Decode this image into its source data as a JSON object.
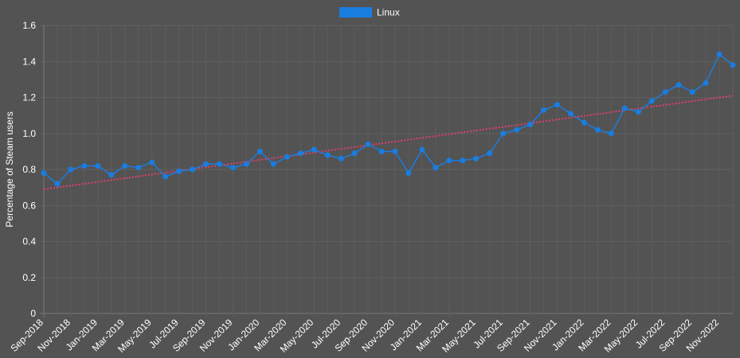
{
  "chart_data": {
    "type": "line",
    "ylabel": "Percentage of Steam users",
    "ylim": [
      0,
      1.6
    ],
    "yticks": [
      0,
      0.2,
      0.4,
      0.6,
      0.8,
      1.0,
      1.2,
      1.4,
      1.6
    ],
    "ytick_labels": [
      "0",
      "0.2",
      "0.4",
      "0.6",
      "0.8",
      "1.0",
      "1.2",
      "1.4",
      "1.6"
    ],
    "grid": true,
    "legend_position": "top-center",
    "x": [
      "Sep-2018",
      "Oct-2018",
      "Nov-2018",
      "Dec-2018",
      "Jan-2019",
      "Feb-2019",
      "Mar-2019",
      "Apr-2019",
      "May-2019",
      "Jun-2019",
      "Jul-2019",
      "Aug-2019",
      "Sep-2019",
      "Oct-2019",
      "Nov-2019",
      "Dec-2019",
      "Jan-2020",
      "Feb-2020",
      "Mar-2020",
      "Apr-2020",
      "May-2020",
      "Jun-2020",
      "Jul-2020",
      "Aug-2020",
      "Sep-2020",
      "Oct-2020",
      "Nov-2020",
      "Dec-2020",
      "Jan-2021",
      "Feb-2021",
      "Mar-2021",
      "Apr-2021",
      "May-2021",
      "Jun-2021",
      "Jul-2021",
      "Aug-2021",
      "Sep-2021",
      "Oct-2021",
      "Nov-2021",
      "Dec-2021",
      "Jan-2022",
      "Feb-2022",
      "Mar-2022",
      "Apr-2022",
      "May-2022",
      "Jun-2022",
      "Jul-2022",
      "Aug-2022",
      "Sep-2022",
      "Oct-2022",
      "Nov-2022",
      "Dec-2022"
    ],
    "xtick_labels": [
      "Sep-2018",
      "Nov-2018",
      "Jan-2019",
      "Mar-2019",
      "May-2019",
      "Jul-2019",
      "Sep-2019",
      "Nov-2019",
      "Jan-2020",
      "Mar-2020",
      "May-2020",
      "Jul-2020",
      "Sep-2020",
      "Nov-2020",
      "Jan-2021",
      "Mar-2021",
      "May-2021",
      "Jul-2021",
      "Sep-2021",
      "Nov-2021",
      "Jan-2022",
      "Mar-2022",
      "May-2022",
      "Jul-2022",
      "Sep-2022",
      "Nov-2022"
    ],
    "series": [
      {
        "name": "Linux",
        "color": "#1a7de0",
        "values": [
          0.78,
          0.72,
          0.8,
          0.82,
          0.82,
          0.77,
          0.82,
          0.81,
          0.84,
          0.76,
          0.79,
          0.8,
          0.83,
          0.83,
          0.81,
          0.83,
          0.9,
          0.83,
          0.87,
          0.89,
          0.91,
          0.88,
          0.86,
          0.89,
          0.94,
          0.9,
          0.9,
          0.78,
          0.91,
          0.81,
          0.85,
          0.85,
          0.86,
          0.89,
          1.0,
          1.02,
          1.05,
          1.13,
          1.16,
          1.11,
          1.06,
          1.02,
          1.0,
          1.14,
          1.12,
          1.18,
          1.23,
          1.27,
          1.23,
          1.28,
          1.44,
          1.38
        ]
      }
    ],
    "trendline": {
      "color": "#e0406a",
      "start": 0.69,
      "end": 1.21
    }
  }
}
